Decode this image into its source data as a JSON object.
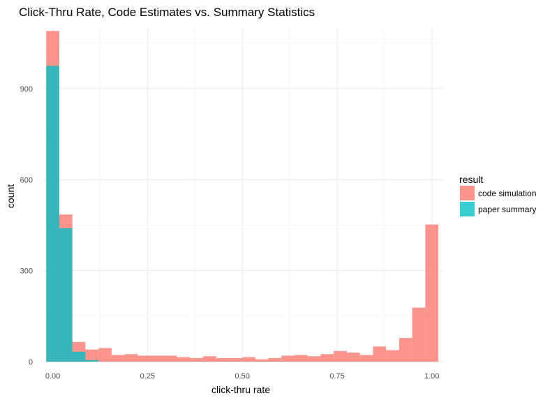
{
  "chart_data": {
    "type": "bar",
    "subtype": "overlaid-histogram",
    "title": "Click-Thru Rate, Code Estimates vs. Summary Statistics",
    "xlabel": "click-thru rate",
    "ylabel": "count",
    "xlim": [
      -0.025,
      1.03
    ],
    "ylim": [
      0,
      1100
    ],
    "x_ticks": [
      0,
      0.25,
      0.5,
      0.75,
      1
    ],
    "x_tick_labels": [
      "0.00",
      "0.25",
      "0.50",
      "0.75",
      "1.00"
    ],
    "y_ticks": [
      0,
      300,
      600,
      900
    ],
    "y_tick_labels": [
      "0",
      "300",
      "600",
      "900"
    ],
    "grid": true,
    "legend": {
      "title": "result",
      "placement": "right"
    },
    "bin_edges": [
      -0.0172,
      0.0172,
      0.0517,
      0.0862,
      0.1207,
      0.1552,
      0.1897,
      0.2241,
      0.2586,
      0.2931,
      0.3276,
      0.3621,
      0.3966,
      0.431,
      0.4655,
      0.5,
      0.5345,
      0.569,
      0.6034,
      0.6379,
      0.6724,
      0.7069,
      0.7414,
      0.7759,
      0.8103,
      0.8448,
      0.8793,
      0.9138,
      0.9483,
      0.9828,
      1.0172
    ],
    "series": [
      {
        "name": "code simulation",
        "color": "#f8766d",
        "values": [
          1090,
          485,
          65,
          40,
          45,
          22,
          25,
          20,
          20,
          20,
          15,
          12,
          18,
          12,
          12,
          15,
          8,
          12,
          20,
          22,
          18,
          25,
          35,
          30,
          22,
          50,
          38,
          78,
          178,
          452
        ]
      },
      {
        "name": "paper summary",
        "color": "#00bfc4",
        "values": [
          975,
          440,
          33,
          5,
          0,
          0,
          0,
          0,
          0,
          0,
          0,
          0,
          0,
          0,
          0,
          0,
          0,
          0,
          0,
          0,
          0,
          0,
          0,
          0,
          0,
          0,
          0,
          0,
          0,
          0
        ]
      }
    ]
  }
}
